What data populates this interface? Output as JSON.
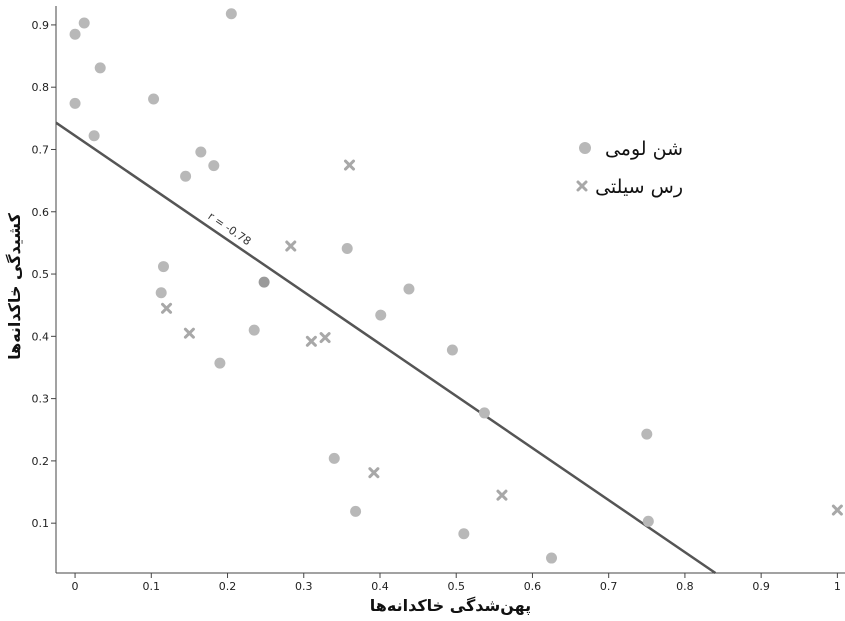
{
  "chart_data": {
    "type": "scatter",
    "xlabel": "پهن‌شدگی خاکدانه‌ها",
    "ylabel": "کشیدگی خاکدانه‌ها",
    "xlim": [
      -0.025,
      1.01
    ],
    "ylim": [
      0.02,
      0.94
    ],
    "x_ticks": [
      "0",
      "0.1",
      "0.2",
      "0.3",
      "0.4",
      "0.5",
      "0.6",
      "0.7",
      "0.8",
      "0.9",
      "1"
    ],
    "y_ticks": [
      "0.1",
      "0.2",
      "0.3",
      "0.4",
      "0.5",
      "0.6",
      "0.7",
      "0.8",
      "0.9"
    ],
    "legend_position": "top-right",
    "series": [
      {
        "name": "شن لومی",
        "marker": "circle",
        "color": "#b8b8b8",
        "points": [
          [
            0.0,
            0.885
          ],
          [
            0.012,
            0.903
          ],
          [
            0.0,
            0.774
          ],
          [
            0.033,
            0.831
          ],
          [
            0.025,
            0.722
          ],
          [
            0.205,
            0.918
          ],
          [
            0.103,
            0.781
          ],
          [
            0.165,
            0.696
          ],
          [
            0.182,
            0.674
          ],
          [
            0.145,
            0.657
          ],
          [
            0.116,
            0.512
          ],
          [
            0.113,
            0.47
          ],
          [
            0.248,
            0.487
          ],
          [
            0.235,
            0.41
          ],
          [
            0.19,
            0.357
          ],
          [
            0.357,
            0.541
          ],
          [
            0.401,
            0.434
          ],
          [
            0.438,
            0.476
          ],
          [
            0.495,
            0.378
          ],
          [
            0.537,
            0.277
          ],
          [
            0.34,
            0.204
          ],
          [
            0.368,
            0.119
          ],
          [
            0.51,
            0.083
          ],
          [
            0.625,
            0.044
          ],
          [
            0.75,
            0.243
          ],
          [
            0.752,
            0.103
          ]
        ]
      },
      {
        "name": "رس سیلتی",
        "marker": "x",
        "color": "#a8a8a8",
        "points": [
          [
            0.36,
            0.675
          ],
          [
            0.283,
            0.545
          ],
          [
            0.12,
            0.445
          ],
          [
            0.15,
            0.405
          ],
          [
            0.31,
            0.392
          ],
          [
            0.328,
            0.398
          ],
          [
            0.392,
            0.181
          ],
          [
            0.56,
            0.145
          ],
          [
            1.0,
            0.121
          ]
        ]
      }
    ],
    "fit_line": {
      "label": "r = -0.78",
      "color": "#555555",
      "x": [
        -0.025,
        0.84
      ],
      "y": [
        0.743,
        0.02
      ]
    },
    "point_color": "#b8b8b8",
    "highlight_point_color": "#9a9a9a"
  }
}
